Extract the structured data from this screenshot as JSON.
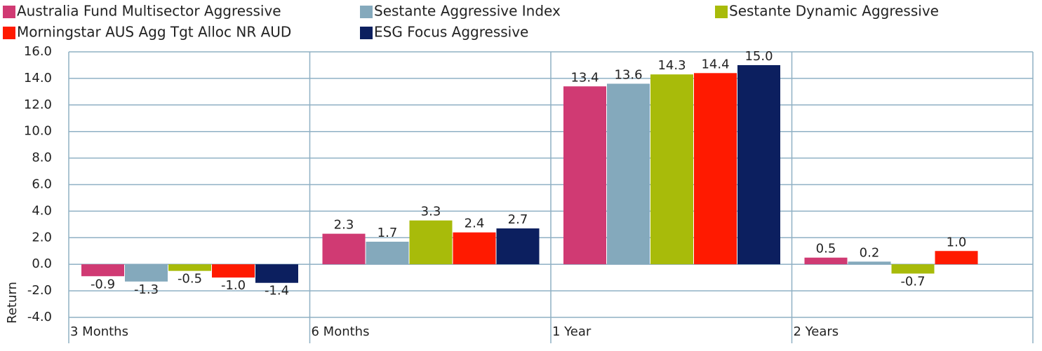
{
  "chart_data": {
    "type": "bar",
    "y_label": "Return",
    "categories": [
      "3 Months",
      "6 Months",
      "1 Year",
      "2 Years"
    ],
    "series": [
      {
        "name": "Australia Fund Multisector Aggressive",
        "color": "#d03a73",
        "values": [
          -0.9,
          2.3,
          13.4,
          0.5
        ],
        "value_labels": [
          "-0.9",
          "2.3",
          "13.4",
          "0.5"
        ]
      },
      {
        "name": "Sestante Aggressive Index",
        "color": "#84a9bc",
        "values": [
          -1.3,
          1.7,
          13.6,
          0.2
        ],
        "value_labels": [
          "-1.3",
          "1.7",
          "13.6",
          "0.2"
        ]
      },
      {
        "name": "Sestante Dynamic Aggressive",
        "color": "#a8bb0a",
        "values": [
          -0.5,
          3.3,
          14.3,
          -0.7
        ],
        "value_labels": [
          "-0.5",
          "3.3",
          "14.3",
          "-0.7"
        ]
      },
      {
        "name": "Morningstar AUS Agg Tgt Alloc NR AUD",
        "color": "#ff1a00",
        "values": [
          -1.0,
          2.4,
          14.4,
          1.0
        ],
        "value_labels": [
          "-1.0",
          "2.4",
          "14.4",
          "1.0"
        ]
      },
      {
        "name": "ESG Focus Aggressive",
        "color": "#0c1f5f",
        "values": [
          -1.4,
          2.7,
          15.0,
          null
        ],
        "value_labels": [
          "-1.4",
          "2.7",
          "15.0",
          null
        ]
      }
    ],
    "ylim": [
      -4,
      16
    ],
    "yticks": [
      {
        "value": -4,
        "label": "-4.0"
      },
      {
        "value": -2,
        "label": "-2.0"
      },
      {
        "value": 0,
        "label": "0.0"
      },
      {
        "value": 2,
        "label": "2.0"
      },
      {
        "value": 4,
        "label": "4.0"
      },
      {
        "value": 6,
        "label": "6.0"
      },
      {
        "value": 8,
        "label": "8.0"
      },
      {
        "value": 10,
        "label": "10.0"
      },
      {
        "value": 12,
        "label": "12.0"
      },
      {
        "value": 14,
        "label": "14.0"
      },
      {
        "value": 16,
        "label": "16.0"
      }
    ],
    "grid": true
  }
}
